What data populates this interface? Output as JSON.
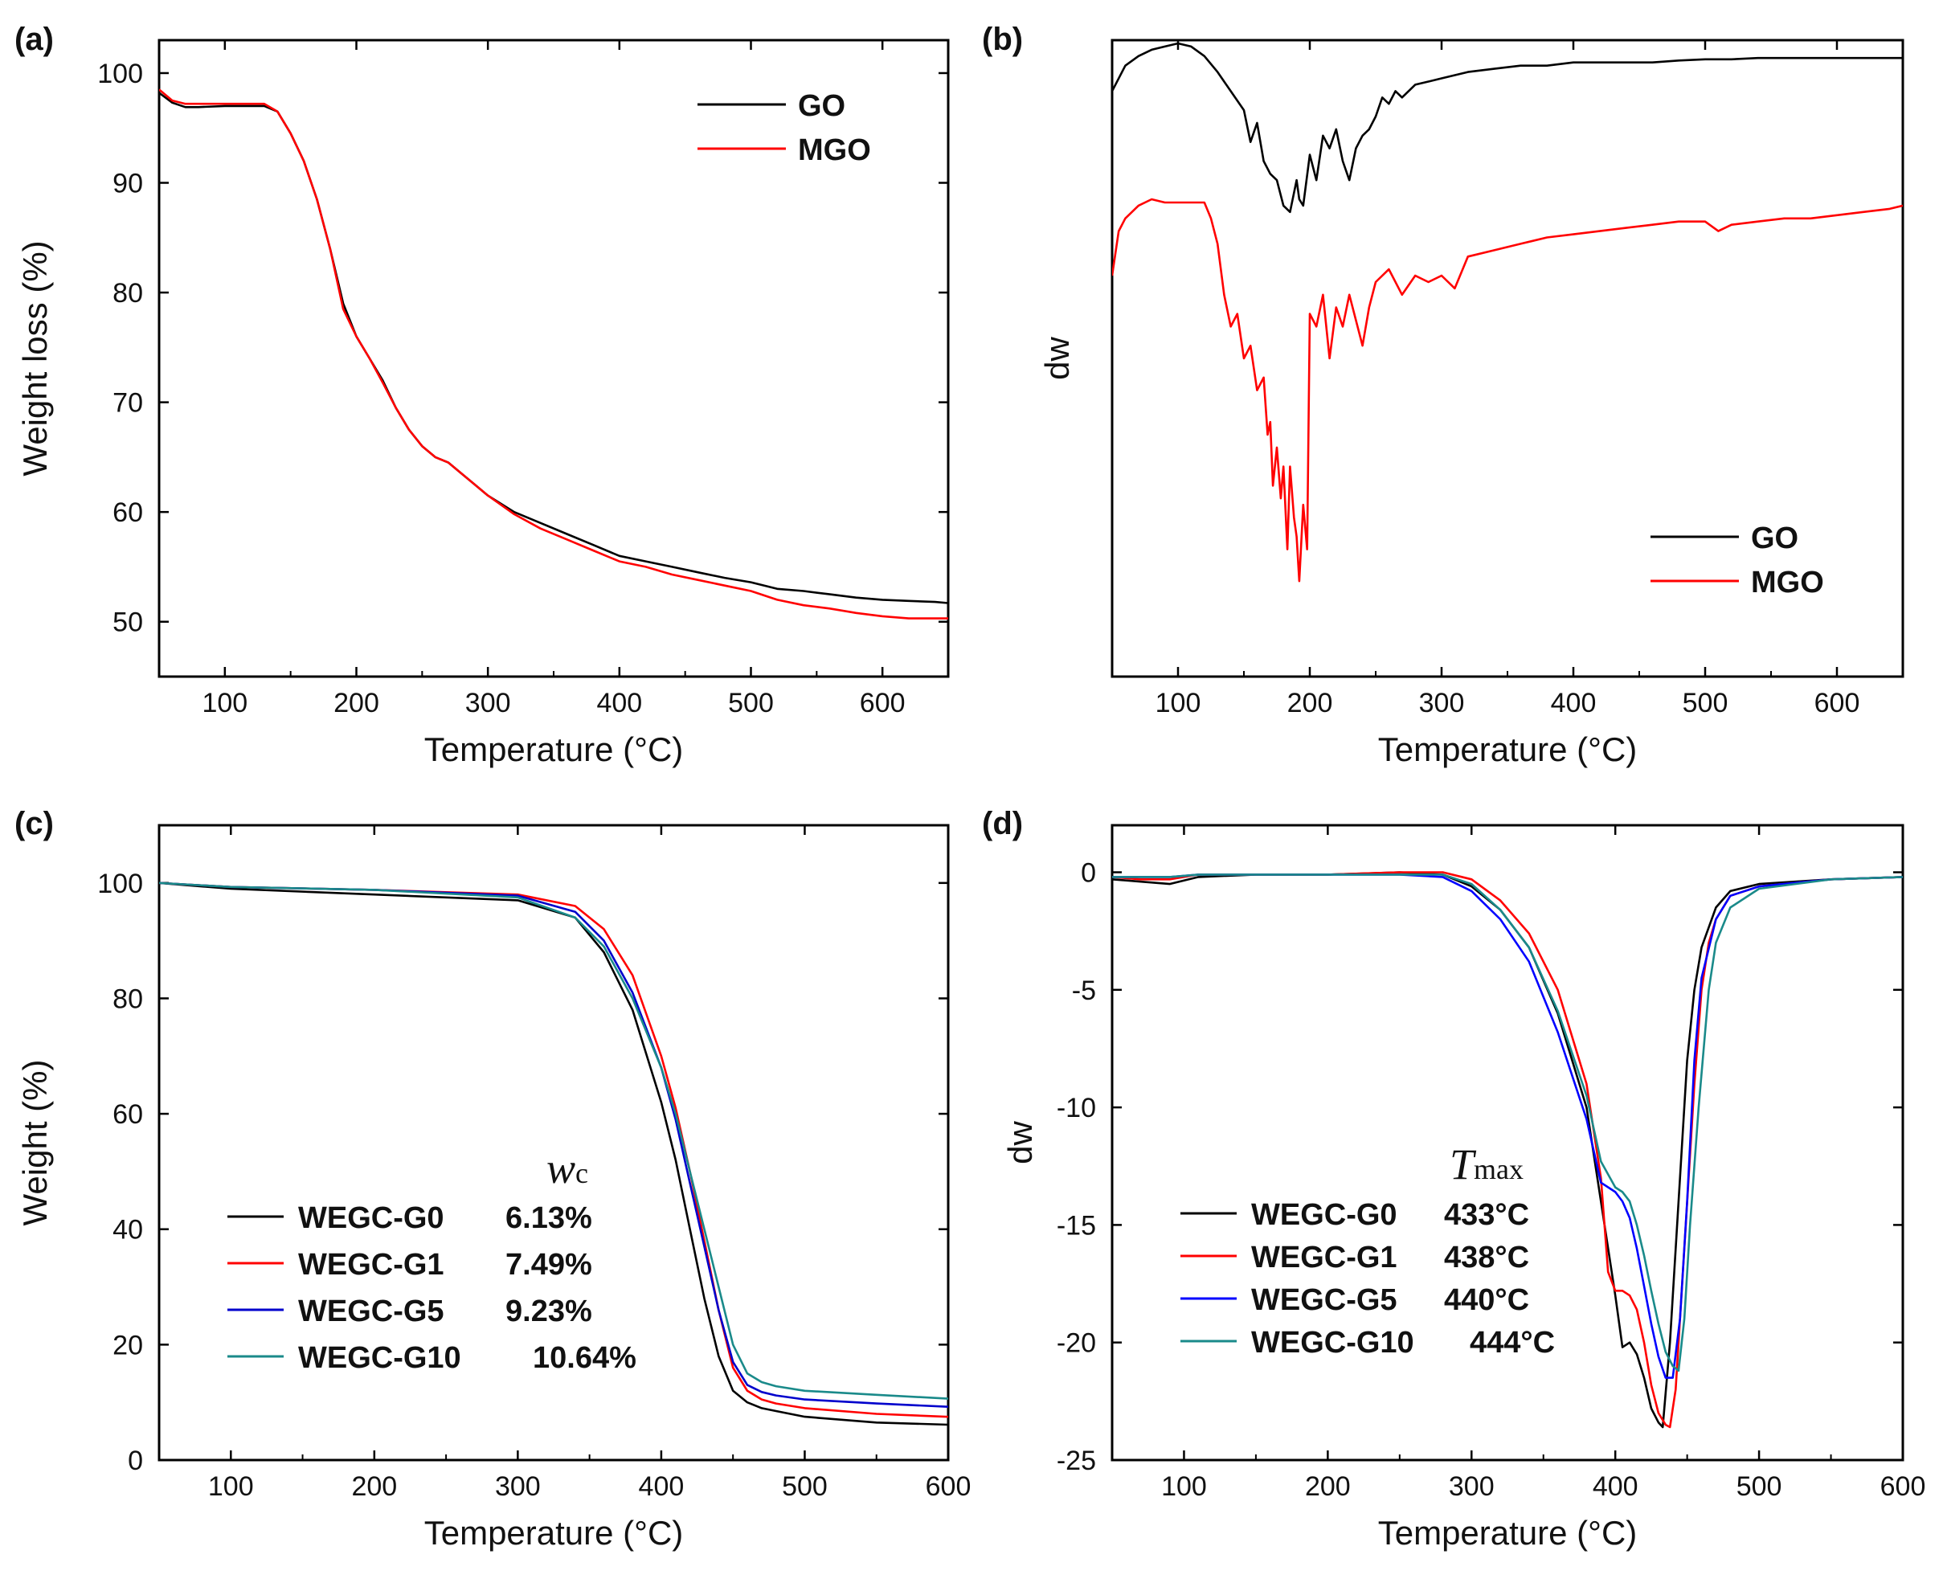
{
  "chart_data": [
    {
      "panel": "(a)",
      "type": "line",
      "xlabel": "Temperature (°C)",
      "ylabel": "Weight loss (%)",
      "xlim": [
        50,
        650
      ],
      "ylim": [
        45,
        103
      ],
      "xticks": [
        100,
        200,
        300,
        400,
        500,
        600
      ],
      "yticks": [
        50,
        60,
        70,
        80,
        90,
        100
      ],
      "legend_position": "top-right",
      "series": [
        {
          "name": "GO",
          "color": "#000000",
          "x": [
            50,
            60,
            70,
            80,
            100,
            120,
            130,
            140,
            150,
            160,
            170,
            180,
            190,
            200,
            210,
            220,
            230,
            240,
            250,
            260,
            270,
            280,
            290,
            300,
            320,
            340,
            360,
            380,
            400,
            420,
            440,
            460,
            480,
            500,
            520,
            540,
            560,
            580,
            600,
            620,
            640,
            650
          ],
          "y": [
            98.2,
            97.3,
            96.9,
            96.9,
            97,
            97,
            97,
            96.5,
            94.5,
            92,
            88.5,
            84,
            79,
            76,
            74,
            72,
            69.5,
            67.5,
            66,
            65,
            64.5,
            63.5,
            62.5,
            61.5,
            60,
            59,
            58,
            57,
            56,
            55.5,
            55,
            54.5,
            54,
            53.6,
            53,
            52.8,
            52.5,
            52.2,
            52,
            51.9,
            51.8,
            51.7
          ]
        },
        {
          "name": "MGO",
          "color": "#ff0000",
          "x": [
            50,
            60,
            70,
            80,
            100,
            120,
            130,
            140,
            150,
            160,
            170,
            180,
            190,
            200,
            210,
            220,
            230,
            240,
            250,
            260,
            270,
            280,
            290,
            300,
            320,
            340,
            360,
            380,
            400,
            420,
            440,
            460,
            480,
            500,
            520,
            540,
            560,
            580,
            600,
            620,
            640,
            650
          ],
          "y": [
            98.5,
            97.5,
            97.2,
            97.2,
            97.2,
            97.2,
            97.2,
            96.5,
            94.5,
            92,
            88.5,
            84,
            78.5,
            76,
            74,
            71.8,
            69.5,
            67.5,
            66,
            65,
            64.5,
            63.5,
            62.5,
            61.5,
            59.8,
            58.5,
            57.5,
            56.5,
            55.5,
            55,
            54.3,
            53.8,
            53.3,
            52.8,
            52,
            51.5,
            51.2,
            50.8,
            50.5,
            50.3,
            50.3,
            50.3
          ]
        }
      ]
    },
    {
      "panel": "(b)",
      "type": "line",
      "xlabel": "Temperature (°C)",
      "ylabel": "dw",
      "xlim": [
        50,
        650
      ],
      "ylim": [
        0,
        100
      ],
      "y_ticks_shown": false,
      "xticks": [
        100,
        200,
        300,
        400,
        500,
        600
      ],
      "legend_position": "lower-right",
      "note_values": "relative units (the y axis has no tick labels)",
      "series": [
        {
          "name": "GO",
          "color": "#000000",
          "x": [
            50,
            60,
            70,
            80,
            90,
            100,
            110,
            120,
            130,
            140,
            150,
            155,
            160,
            165,
            170,
            175,
            180,
            185,
            190,
            192,
            195,
            200,
            205,
            210,
            215,
            220,
            225,
            230,
            235,
            240,
            245,
            250,
            255,
            260,
            265,
            270,
            280,
            290,
            300,
            320,
            340,
            360,
            380,
            400,
            420,
            440,
            460,
            480,
            500,
            520,
            540,
            560,
            580,
            600,
            620,
            640,
            650
          ],
          "y": [
            92,
            96,
            97.5,
            98.5,
            99,
            99.5,
            99,
            97.5,
            95,
            92,
            89,
            84,
            87,
            81,
            79,
            78,
            74,
            73,
            78,
            75,
            74,
            82,
            78,
            85,
            83,
            86,
            81,
            78,
            83,
            85,
            86,
            88,
            91,
            90,
            92,
            91,
            93,
            93.5,
            94,
            95,
            95.5,
            96,
            96,
            96.5,
            96.5,
            96.5,
            96.5,
            96.8,
            97,
            97,
            97.2,
            97.2,
            97.2,
            97.2,
            97.2,
            97.2,
            97.2
          ]
        },
        {
          "name": "MGO",
          "color": "#ff0000",
          "x": [
            50,
            55,
            60,
            70,
            80,
            90,
            100,
            110,
            120,
            125,
            130,
            135,
            140,
            145,
            150,
            155,
            160,
            165,
            168,
            170,
            172,
            175,
            178,
            180,
            183,
            185,
            188,
            190,
            192,
            195,
            198,
            200,
            205,
            210,
            215,
            220,
            225,
            230,
            240,
            245,
            250,
            260,
            270,
            280,
            290,
            300,
            310,
            320,
            340,
            360,
            380,
            400,
            420,
            440,
            460,
            480,
            500,
            510,
            520,
            540,
            560,
            580,
            600,
            620,
            640,
            650
          ],
          "y": [
            63,
            70,
            72,
            74,
            75,
            74.5,
            74.5,
            74.5,
            74.5,
            72,
            68,
            60,
            55,
            57,
            50,
            52,
            45,
            47,
            38,
            40,
            30,
            36,
            28,
            33,
            20,
            33,
            25,
            22,
            15,
            27,
            20,
            57,
            55,
            60,
            50,
            58,
            55,
            60,
            52,
            58,
            62,
            64,
            60,
            63,
            62,
            63,
            61,
            66,
            67,
            68,
            69,
            69.5,
            70,
            70.5,
            71,
            71.5,
            71.5,
            70,
            71,
            71.5,
            72,
            72,
            72.5,
            73,
            73.5,
            74
          ]
        }
      ]
    },
    {
      "panel": "(c)",
      "type": "line",
      "xlabel": "Temperature (°C)",
      "ylabel": "Weight (%)",
      "xlim": [
        50,
        600
      ],
      "ylim": [
        0,
        110
      ],
      "xticks": [
        100,
        200,
        300,
        400,
        500,
        600
      ],
      "yticks": [
        0,
        20,
        40,
        60,
        80,
        100
      ],
      "legend_position": "lower-left",
      "legend_heading": {
        "main": "w",
        "sub": "c"
      },
      "series": [
        {
          "name": "WEGC-G0",
          "value_label": "6.13%",
          "color": "#000000",
          "x": [
            50,
            100,
            200,
            300,
            340,
            360,
            380,
            400,
            410,
            420,
            430,
            440,
            450,
            460,
            470,
            480,
            500,
            550,
            600
          ],
          "y": [
            100,
            99,
            98,
            97,
            94,
            88,
            78,
            62,
            52,
            40,
            28,
            18,
            12,
            10,
            9,
            8.5,
            7.5,
            6.5,
            6.13
          ]
        },
        {
          "name": "WEGC-G1",
          "value_label": "7.49%",
          "color": "#ff0000",
          "x": [
            50,
            100,
            200,
            300,
            340,
            360,
            380,
            400,
            410,
            420,
            430,
            440,
            450,
            460,
            470,
            480,
            500,
            550,
            600
          ],
          "y": [
            100,
            99.3,
            98.8,
            98,
            96,
            92,
            84,
            70,
            61,
            50,
            38,
            26,
            16,
            12,
            10.5,
            9.8,
            9,
            8,
            7.49
          ]
        },
        {
          "name": "WEGC-G5",
          "value_label": "9.23%",
          "color": "#0000cc",
          "x": [
            50,
            100,
            200,
            300,
            340,
            360,
            380,
            400,
            410,
            420,
            430,
            440,
            450,
            460,
            470,
            480,
            500,
            550,
            600
          ],
          "y": [
            100,
            99.3,
            98.8,
            97.8,
            95,
            90,
            81,
            68,
            59,
            48,
            37,
            26,
            17,
            13,
            11.8,
            11.2,
            10.5,
            9.8,
            9.23
          ]
        },
        {
          "name": "WEGC-G10",
          "value_label": "10.64%",
          "color": "#1a8a8a",
          "x": [
            50,
            100,
            200,
            300,
            340,
            360,
            380,
            400,
            410,
            420,
            430,
            440,
            450,
            460,
            470,
            480,
            500,
            550,
            600
          ],
          "y": [
            100,
            99.3,
            98.8,
            97.5,
            94,
            89,
            80,
            68,
            60,
            50,
            40,
            30,
            20,
            15,
            13.5,
            12.8,
            12,
            11.3,
            10.64
          ]
        }
      ]
    },
    {
      "panel": "(d)",
      "type": "line",
      "xlabel": "Temperature (°C)",
      "ylabel": "dw",
      "xlim": [
        50,
        600
      ],
      "ylim": [
        -25,
        2
      ],
      "xticks": [
        100,
        200,
        300,
        400,
        500,
        600
      ],
      "yticks": [
        0,
        -5,
        -10,
        -15,
        -20,
        -25
      ],
      "legend_position": "lower-left",
      "legend_heading": {
        "main": "T",
        "sub": "max"
      },
      "series": [
        {
          "name": "WEGC-G0",
          "value_label": "433°C",
          "color": "#000000",
          "x": [
            50,
            70,
            90,
            110,
            150,
            200,
            250,
            280,
            300,
            320,
            340,
            360,
            380,
            390,
            400,
            405,
            410,
            415,
            420,
            425,
            430,
            433,
            438,
            445,
            450,
            455,
            460,
            470,
            480,
            500,
            550,
            600
          ],
          "y": [
            -0.3,
            -0.4,
            -0.5,
            -0.2,
            -0.1,
            -0.1,
            0,
            -0.1,
            -0.6,
            -1.6,
            -3.2,
            -6,
            -10,
            -14,
            -18,
            -20.2,
            -20,
            -20.5,
            -21.5,
            -22.8,
            -23.4,
            -23.6,
            -20,
            -13,
            -8,
            -5,
            -3.2,
            -1.5,
            -0.8,
            -0.5,
            -0.3,
            -0.2
          ]
        },
        {
          "name": "WEGC-G1",
          "value_label": "438°C",
          "color": "#ff0000",
          "x": [
            50,
            70,
            90,
            110,
            150,
            200,
            250,
            280,
            300,
            320,
            340,
            360,
            380,
            390,
            395,
            400,
            405,
            410,
            415,
            420,
            425,
            430,
            435,
            438,
            442,
            448,
            455,
            460,
            465,
            470,
            480,
            500,
            550,
            600
          ],
          "y": [
            -0.2,
            -0.3,
            -0.3,
            -0.1,
            -0.1,
            -0.1,
            0,
            0,
            -0.3,
            -1.2,
            -2.6,
            -5,
            -9,
            -13,
            -17,
            -17.8,
            -17.8,
            -18,
            -18.6,
            -20,
            -21.8,
            -23,
            -23.5,
            -23.6,
            -22,
            -16,
            -9,
            -5,
            -3,
            -2,
            -1,
            -0.6,
            -0.3,
            -0.2
          ]
        },
        {
          "name": "WEGC-G5",
          "value_label": "440°C",
          "color": "#0000ff",
          "x": [
            50,
            70,
            90,
            110,
            150,
            200,
            250,
            280,
            300,
            320,
            340,
            360,
            380,
            390,
            400,
            405,
            410,
            415,
            420,
            425,
            430,
            435,
            440,
            445,
            450,
            455,
            460,
            470,
            480,
            500,
            550,
            600
          ],
          "y": [
            -0.2,
            -0.2,
            -0.2,
            -0.1,
            -0.1,
            -0.1,
            -0.1,
            -0.2,
            -0.8,
            -2,
            -3.8,
            -6.8,
            -10.5,
            -13.2,
            -13.6,
            -14,
            -14.7,
            -16,
            -17.6,
            -19.2,
            -20.6,
            -21.5,
            -21.5,
            -19,
            -14,
            -8,
            -4.5,
            -2,
            -1,
            -0.6,
            -0.3,
            -0.2
          ]
        },
        {
          "name": "WEGC-G10",
          "value_label": "444°C",
          "color": "#1a8a8a",
          "x": [
            50,
            70,
            90,
            110,
            150,
            200,
            250,
            280,
            300,
            320,
            340,
            360,
            380,
            390,
            400,
            405,
            410,
            415,
            420,
            425,
            430,
            435,
            440,
            444,
            448,
            452,
            458,
            465,
            470,
            480,
            500,
            550,
            600
          ],
          "y": [
            -0.2,
            -0.2,
            -0.2,
            -0.1,
            -0.1,
            -0.1,
            -0.1,
            -0.1,
            -0.5,
            -1.6,
            -3.2,
            -5.9,
            -9.5,
            -12.3,
            -13.4,
            -13.6,
            -14,
            -15,
            -16.3,
            -17.8,
            -19.2,
            -20.4,
            -21,
            -21.2,
            -19,
            -15,
            -10,
            -5,
            -3,
            -1.5,
            -0.7,
            -0.3,
            -0.2
          ]
        }
      ]
    }
  ]
}
